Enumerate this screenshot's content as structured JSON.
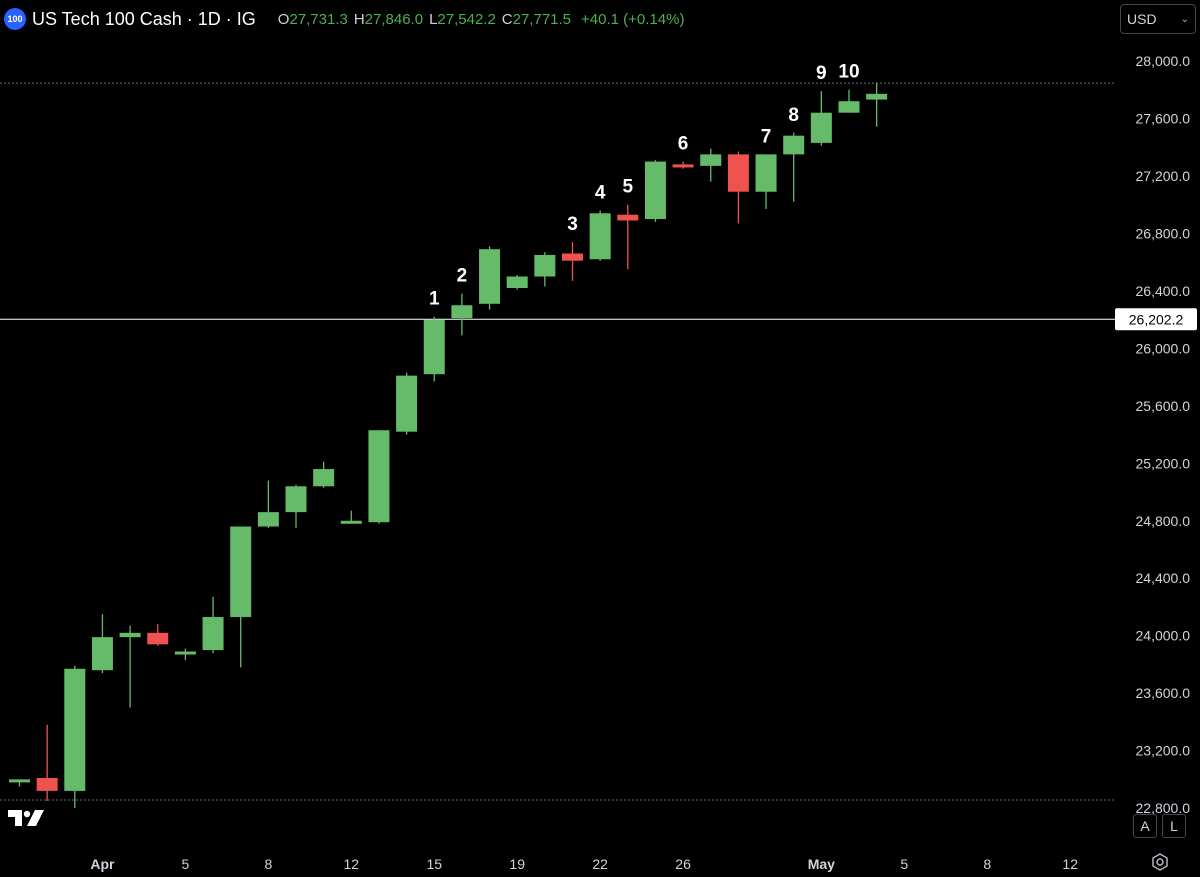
{
  "header": {
    "symbol_badge": "100",
    "title": "US Tech 100 Cash · 1D · IG",
    "open_key": "O",
    "open": "27,731.3",
    "high_key": "H",
    "high": "27,846.0",
    "low_key": "L",
    "low": "27,542.2",
    "close_key": "C",
    "close": "27,771.5",
    "change": "+40.1 (+0.14%)"
  },
  "currency": {
    "label": "USD",
    "icon": "chevron-down-icon"
  },
  "scale_buttons": {
    "auto": "A",
    "log": "L"
  },
  "icons": {
    "logo": "tradingview-logo-icon",
    "settings": "gear-icon"
  },
  "colors": {
    "up": "#66bb6a",
    "down": "#ef5350",
    "background": "#000000",
    "text": "#d1d4dc",
    "change_text": "#4caf50"
  },
  "chart_data": {
    "type": "candlestick",
    "price_axis": {
      "min": 22700,
      "max": 28400,
      "ticks": [
        "28,000.0",
        "27,600.0",
        "27,200.0",
        "26,800.0",
        "26,400.0",
        "26,000.0",
        "25,600.0",
        "25,200.0",
        "24,800.0",
        "24,400.0",
        "24,000.0",
        "23,600.0",
        "23,200.0",
        "22,800.0"
      ],
      "tick_values": [
        28000,
        27600,
        27200,
        26800,
        26400,
        26000,
        25600,
        25200,
        24800,
        24400,
        24000,
        23600,
        23200,
        22800
      ]
    },
    "time_axis": {
      "labels": [
        "Apr",
        "5",
        "8",
        "12",
        "15",
        "19",
        "22",
        "26",
        "May",
        "5",
        "8",
        "12"
      ],
      "label_bar_index": [
        3,
        6,
        9,
        12,
        15,
        18,
        21,
        24,
        29,
        32,
        35,
        38
      ],
      "first_bar_index": 0
    },
    "horizontal_line": {
      "value": 26202.2,
      "label": "26,202.2"
    },
    "dotted_line": {
      "value": 27846.0
    },
    "candles": [
      {
        "o": 22980,
        "h": 23000,
        "l": 22950,
        "c": 23000
      },
      {
        "o": 23010,
        "h": 23380,
        "l": 22850,
        "c": 22920
      },
      {
        "o": 22920,
        "h": 23790,
        "l": 22800,
        "c": 23770
      },
      {
        "o": 23760,
        "h": 24150,
        "l": 23740,
        "c": 23990
      },
      {
        "o": 23990,
        "h": 24070,
        "l": 23500,
        "c": 24020
      },
      {
        "o": 24020,
        "h": 24080,
        "l": 23930,
        "c": 23940
      },
      {
        "o": 23870,
        "h": 23910,
        "l": 23830,
        "c": 23890
      },
      {
        "o": 23900,
        "h": 24270,
        "l": 23880,
        "c": 24130
      },
      {
        "o": 24130,
        "h": 24750,
        "l": 23780,
        "c": 24760
      },
      {
        "o": 24760,
        "h": 25080,
        "l": 24750,
        "c": 24860
      },
      {
        "o": 24860,
        "h": 25050,
        "l": 24750,
        "c": 25040
      },
      {
        "o": 25040,
        "h": 25210,
        "l": 25030,
        "c": 25160
      },
      {
        "o": 24790,
        "h": 24870,
        "l": 24780,
        "c": 24800
      },
      {
        "o": 24790,
        "h": 25430,
        "l": 24780,
        "c": 25430
      },
      {
        "o": 25420,
        "h": 25830,
        "l": 25400,
        "c": 25810
      },
      {
        "o": 25820,
        "h": 26220,
        "l": 25770,
        "c": 26200
      },
      {
        "o": 26210,
        "h": 26380,
        "l": 26090,
        "c": 26300
      },
      {
        "o": 26310,
        "h": 26710,
        "l": 26270,
        "c": 26690
      },
      {
        "o": 26420,
        "h": 26510,
        "l": 26410,
        "c": 26500
      },
      {
        "o": 26500,
        "h": 26670,
        "l": 26430,
        "c": 26650
      },
      {
        "o": 26660,
        "h": 26740,
        "l": 26470,
        "c": 26610
      },
      {
        "o": 26620,
        "h": 26960,
        "l": 26610,
        "c": 26940
      },
      {
        "o": 26930,
        "h": 27000,
        "l": 26550,
        "c": 26890
      },
      {
        "o": 26900,
        "h": 27310,
        "l": 26880,
        "c": 27300
      },
      {
        "o": 27280,
        "h": 27300,
        "l": 27250,
        "c": 27270
      },
      {
        "o": 27270,
        "h": 27390,
        "l": 27160,
        "c": 27350
      },
      {
        "o": 27350,
        "h": 27370,
        "l": 26870,
        "c": 27090
      },
      {
        "o": 27090,
        "h": 27350,
        "l": 26970,
        "c": 27350
      },
      {
        "o": 27350,
        "h": 27500,
        "l": 27020,
        "c": 27480
      },
      {
        "o": 27430,
        "h": 27790,
        "l": 27410,
        "c": 27640
      },
      {
        "o": 27640,
        "h": 27800,
        "l": 27640,
        "c": 27720
      },
      {
        "o": 27731.3,
        "h": 27846.0,
        "l": 27542.2,
        "c": 27771.5
      }
    ],
    "annotations": [
      {
        "text": "1",
        "bar": 15
      },
      {
        "text": "2",
        "bar": 16
      },
      {
        "text": "3",
        "bar": 20
      },
      {
        "text": "4",
        "bar": 21
      },
      {
        "text": "5",
        "bar": 22
      },
      {
        "text": "6",
        "bar": 24
      },
      {
        "text": "7",
        "bar": 27
      },
      {
        "text": "8",
        "bar": 28
      },
      {
        "text": "9",
        "bar": 29
      },
      {
        "text": "10",
        "bar": 30
      }
    ]
  }
}
